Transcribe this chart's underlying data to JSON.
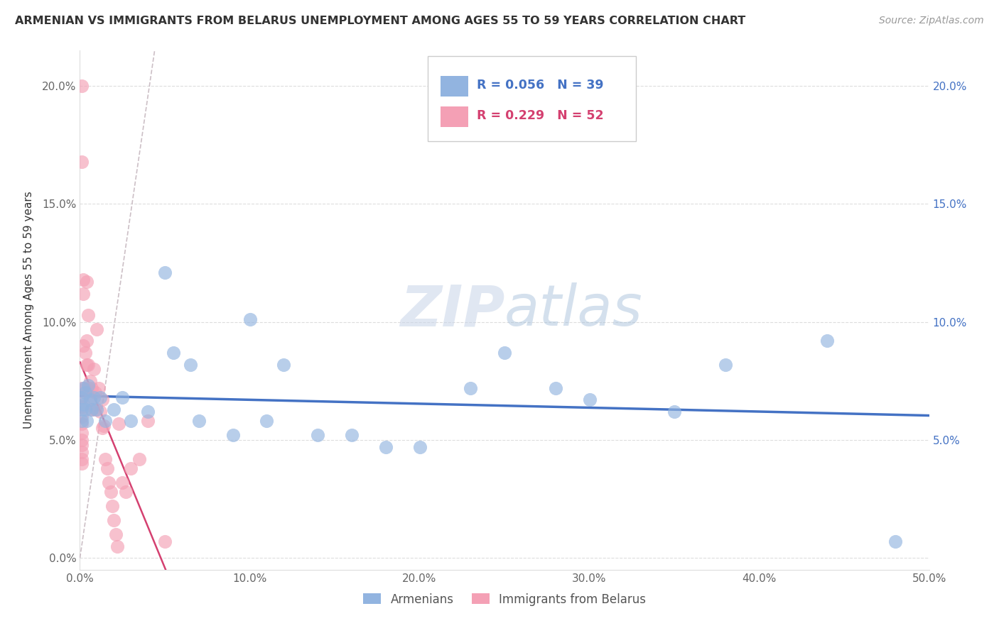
{
  "title": "ARMENIAN VS IMMIGRANTS FROM BELARUS UNEMPLOYMENT AMONG AGES 55 TO 59 YEARS CORRELATION CHART",
  "source": "Source: ZipAtlas.com",
  "ylabel": "Unemployment Among Ages 55 to 59 years",
  "xlim": [
    0.0,
    0.5
  ],
  "ylim": [
    -0.005,
    0.215
  ],
  "xticks": [
    0.0,
    0.1,
    0.2,
    0.3,
    0.4,
    0.5
  ],
  "xticklabels": [
    "0.0%",
    "10.0%",
    "20.0%",
    "30.0%",
    "40.0%",
    "50.0%"
  ],
  "yticks": [
    0.0,
    0.05,
    0.1,
    0.15,
    0.2
  ],
  "yticklabels": [
    "0.0%",
    "5.0%",
    "10.0%",
    "15.0%",
    "20.0%"
  ],
  "right_yticklabels": [
    "",
    "5.0%",
    "10.0%",
    "15.0%",
    "20.0%"
  ],
  "legend_R1": "R = 0.056",
  "legend_N1": "N = 39",
  "legend_R2": "R = 0.229",
  "legend_N2": "N = 52",
  "color_armenian": "#92b4e0",
  "color_belarus": "#f4a0b5",
  "color_line_armenian": "#4472c4",
  "color_line_belarus": "#d44070",
  "color_trendline_belarus": "#d0a0b0",
  "watermark_zip": "ZIP",
  "watermark_atlas": "atlas",
  "armenian_x": [
    0.001,
    0.001,
    0.001,
    0.002,
    0.002,
    0.003,
    0.003,
    0.004,
    0.005,
    0.006,
    0.007,
    0.008,
    0.01,
    0.012,
    0.015,
    0.02,
    0.025,
    0.03,
    0.04,
    0.05,
    0.055,
    0.065,
    0.07,
    0.09,
    0.1,
    0.11,
    0.12,
    0.14,
    0.16,
    0.18,
    0.2,
    0.23,
    0.25,
    0.28,
    0.3,
    0.35,
    0.38,
    0.44,
    0.48
  ],
  "armenian_y": [
    0.068,
    0.063,
    0.058,
    0.072,
    0.065,
    0.07,
    0.063,
    0.058,
    0.073,
    0.067,
    0.063,
    0.068,
    0.063,
    0.068,
    0.058,
    0.063,
    0.068,
    0.058,
    0.062,
    0.121,
    0.087,
    0.082,
    0.058,
    0.052,
    0.101,
    0.058,
    0.082,
    0.052,
    0.052,
    0.047,
    0.047,
    0.072,
    0.087,
    0.072,
    0.067,
    0.062,
    0.082,
    0.092,
    0.007
  ],
  "belarus_x": [
    0.001,
    0.001,
    0.001,
    0.001,
    0.001,
    0.001,
    0.001,
    0.001,
    0.001,
    0.001,
    0.001,
    0.001,
    0.001,
    0.002,
    0.002,
    0.002,
    0.003,
    0.003,
    0.004,
    0.004,
    0.004,
    0.005,
    0.005,
    0.005,
    0.006,
    0.006,
    0.007,
    0.007,
    0.008,
    0.009,
    0.009,
    0.01,
    0.011,
    0.012,
    0.013,
    0.013,
    0.014,
    0.015,
    0.016,
    0.017,
    0.018,
    0.019,
    0.02,
    0.021,
    0.022,
    0.023,
    0.025,
    0.027,
    0.03,
    0.035,
    0.04,
    0.05
  ],
  "belarus_y": [
    0.2,
    0.168,
    0.072,
    0.068,
    0.064,
    0.06,
    0.057,
    0.053,
    0.05,
    0.048,
    0.045,
    0.042,
    0.04,
    0.118,
    0.112,
    0.09,
    0.087,
    0.072,
    0.117,
    0.092,
    0.082,
    0.103,
    0.082,
    0.072,
    0.075,
    0.068,
    0.072,
    0.063,
    0.08,
    0.07,
    0.063,
    0.097,
    0.072,
    0.062,
    0.067,
    0.055,
    0.056,
    0.042,
    0.038,
    0.032,
    0.028,
    0.022,
    0.016,
    0.01,
    0.005,
    0.057,
    0.032,
    0.028,
    0.038,
    0.042,
    0.058,
    0.007
  ]
}
